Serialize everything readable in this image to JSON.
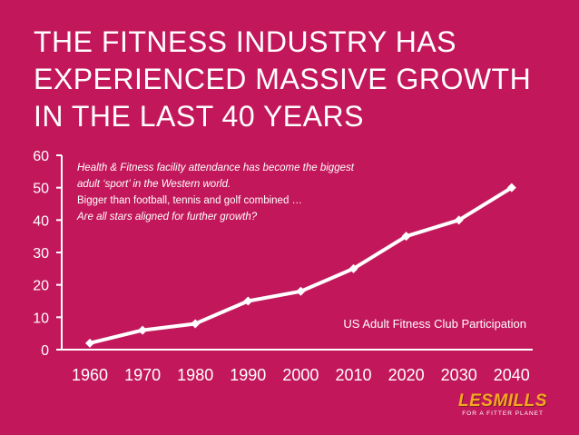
{
  "slide": {
    "title": "THE FITNESS INDUSTRY HAS EXPERIENCED MASSIVE GROWTH IN THE LAST 40 YEARS",
    "notes": [
      "Health & Fitness facility attendance has become the biggest",
      "adult ‘sport’ in the Western world.",
      "Bigger than football, tennis and golf combined …",
      "Are all stars aligned for further growth?"
    ],
    "logo_text": "LESMILLS",
    "logo_tagline": "FOR A FITTER PLANET",
    "background_color": "#C2185B",
    "logo_color": "#F5A623"
  },
  "chart_data": {
    "type": "line",
    "x": [
      1960,
      1970,
      1980,
      1990,
      2000,
      2010,
      2020,
      2030,
      2040
    ],
    "x_tick_labels": [
      "1960",
      "1970",
      "1980",
      "1990",
      "2000",
      "2010",
      "2020",
      "2030",
      "2040"
    ],
    "y_ticks": [
      0,
      10,
      20,
      30,
      40,
      50,
      60
    ],
    "y_tick_labels": [
      "0",
      "10",
      "20",
      "30",
      "40",
      "50",
      "60"
    ],
    "series": [
      {
        "values": [
          2,
          6,
          8,
          15,
          18,
          25,
          35,
          40,
          50
        ]
      }
    ],
    "annotation": "US Adult Fitness Club Participation",
    "ylim": [
      0,
      60
    ],
    "grid": false,
    "line_color": "#ffffff"
  }
}
